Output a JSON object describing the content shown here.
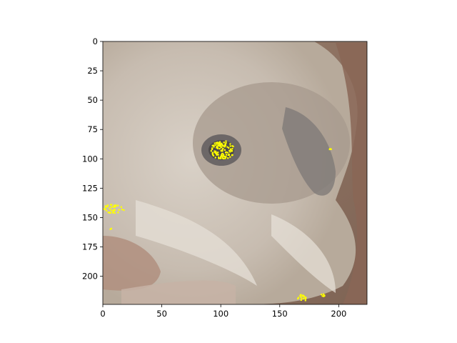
{
  "chart_data": {
    "type": "heatmap",
    "title": "",
    "xlabel": "",
    "ylabel": "",
    "xlim": [
      0,
      224
    ],
    "ylim": [
      224,
      0
    ],
    "x_ticks": [
      0,
      50,
      100,
      150,
      200
    ],
    "y_ticks": [
      0,
      25,
      50,
      75,
      100,
      125,
      150,
      175,
      200
    ],
    "grid": false,
    "image_description_colors": {
      "background": "#8a6f5f",
      "fur_light": "#d9d1c7",
      "fur_mid": "#b7aa9b",
      "fur_shadow": "#8d8b89",
      "nose_dark": "#6c6767",
      "highlight": "#ffff00"
    },
    "highlight_clusters": [
      {
        "x": 101,
        "y": 92,
        "spread": 10,
        "count": 110
      },
      {
        "x": 8,
        "y": 142,
        "spread": 6,
        "count": 40
      },
      {
        "x": 168,
        "y": 218,
        "spread": 4,
        "count": 18
      },
      {
        "x": 186,
        "y": 216,
        "spread": 2,
        "count": 6
      },
      {
        "x": 192,
        "y": 91,
        "spread": 1,
        "count": 3
      },
      {
        "x": 7,
        "y": 159,
        "spread": 1,
        "count": 2
      }
    ]
  }
}
